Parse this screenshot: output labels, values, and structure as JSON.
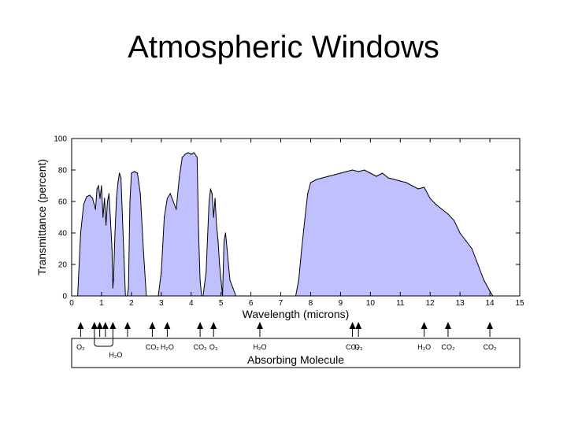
{
  "slide": {
    "title": "Atmospheric Windows"
  },
  "chart_data": {
    "type": "area",
    "xlabel": "Wavelength (microns)",
    "ylabel": "Transmittance (percent)",
    "xlim": [
      0,
      15
    ],
    "ylim": [
      0,
      100
    ],
    "xticks": [
      "0",
      "1",
      "2",
      "3",
      "4",
      "5",
      "6",
      "7",
      "8",
      "9",
      "10",
      "11",
      "12",
      "13",
      "14",
      "15"
    ],
    "yticks": [
      "0",
      "20",
      "40",
      "60",
      "80",
      "100"
    ],
    "fill_color": "#c0c0ff",
    "line_color": "#000000",
    "grid": false,
    "series": [
      {
        "x": [
          0.2,
          0.3,
          0.4,
          0.5,
          0.6,
          0.7,
          0.8,
          0.85,
          0.9,
          0.95,
          1.0,
          1.05,
          1.1,
          1.15,
          1.2,
          1.25,
          1.3,
          1.35,
          1.38,
          1.4,
          1.45,
          1.5,
          1.55,
          1.6,
          1.65,
          1.7,
          1.75,
          1.8,
          1.83,
          1.86,
          1.9,
          1.95,
          2.0,
          2.1,
          2.2,
          2.3,
          2.4,
          2.5,
          2.6,
          2.7,
          2.8,
          2.9,
          3.0,
          3.1,
          3.2,
          3.3,
          3.4,
          3.5,
          3.6,
          3.7,
          3.8,
          3.9,
          4.0,
          4.1,
          4.2,
          4.25,
          4.3,
          4.35,
          4.4,
          4.5,
          4.6,
          4.65,
          4.7,
          4.75,
          4.8,
          4.85,
          4.9,
          4.95,
          5.0,
          5.05,
          5.1,
          5.15,
          5.2,
          5.25,
          5.3,
          5.4,
          5.5,
          5.6,
          5.7,
          5.8,
          6.0,
          7.0,
          7.5,
          7.6,
          7.7,
          7.8,
          7.9,
          8.0,
          8.2,
          8.4,
          8.6,
          8.8,
          9.0,
          9.2,
          9.4,
          9.6,
          9.8,
          10.0,
          10.2,
          10.4,
          10.6,
          10.8,
          11.0,
          11.2,
          11.4,
          11.6,
          11.8,
          12.0,
          12.2,
          12.4,
          12.6,
          12.8,
          13.0,
          13.2,
          13.4,
          13.6,
          13.8,
          14.0,
          14.1
        ],
        "y": [
          0,
          40,
          58,
          63,
          64,
          62,
          55,
          68,
          70,
          62,
          70,
          50,
          62,
          45,
          60,
          65,
          48,
          30,
          5,
          10,
          40,
          62,
          72,
          78,
          75,
          50,
          25,
          0,
          0,
          0,
          5,
          60,
          78,
          79,
          78,
          65,
          30,
          0,
          0,
          0,
          0,
          0,
          15,
          50,
          62,
          65,
          60,
          55,
          75,
          88,
          90,
          91,
          90,
          91,
          88,
          40,
          10,
          0,
          0,
          15,
          60,
          68,
          65,
          50,
          62,
          45,
          35,
          20,
          10,
          0,
          35,
          40,
          30,
          20,
          10,
          5,
          0,
          0,
          0,
          0,
          0,
          0,
          0,
          10,
          30,
          48,
          65,
          72,
          74,
          75,
          76,
          77,
          78,
          79,
          80,
          79,
          80,
          78,
          76,
          78,
          75,
          74,
          73,
          72,
          70,
          68,
          69,
          62,
          58,
          55,
          52,
          48,
          40,
          35,
          30,
          20,
          10,
          3,
          0
        ]
      }
    ],
    "molecules": [
      {
        "wavelength": 0.3,
        "label": "O₂"
      },
      {
        "wavelength": 0.76,
        "label": ""
      },
      {
        "wavelength": 0.94,
        "label": ""
      },
      {
        "wavelength": 1.13,
        "label": ""
      },
      {
        "wavelength": 1.38,
        "label": ""
      },
      {
        "wavelength": 1.87,
        "label": ""
      },
      {
        "wavelength": 1.0,
        "label": "H₂O",
        "group": [
          0.76,
          1.38
        ]
      },
      {
        "wavelength": 2.7,
        "label": "CO₂"
      },
      {
        "wavelength": 3.2,
        "label": "H₂O"
      },
      {
        "wavelength": 4.3,
        "label": "CO₂"
      },
      {
        "wavelength": 4.75,
        "label": "O₃"
      },
      {
        "wavelength": 6.3,
        "label": "H₂O"
      },
      {
        "wavelength": 9.4,
        "label": "CO₂"
      },
      {
        "wavelength": 9.6,
        "label": "O₃"
      },
      {
        "wavelength": 11.8,
        "label": "H₂O"
      },
      {
        "wavelength": 12.6,
        "label": "CO₂"
      },
      {
        "wavelength": 14.0,
        "label": "CO₂"
      }
    ],
    "molecule_box_label": "Absorbing Molecule"
  }
}
